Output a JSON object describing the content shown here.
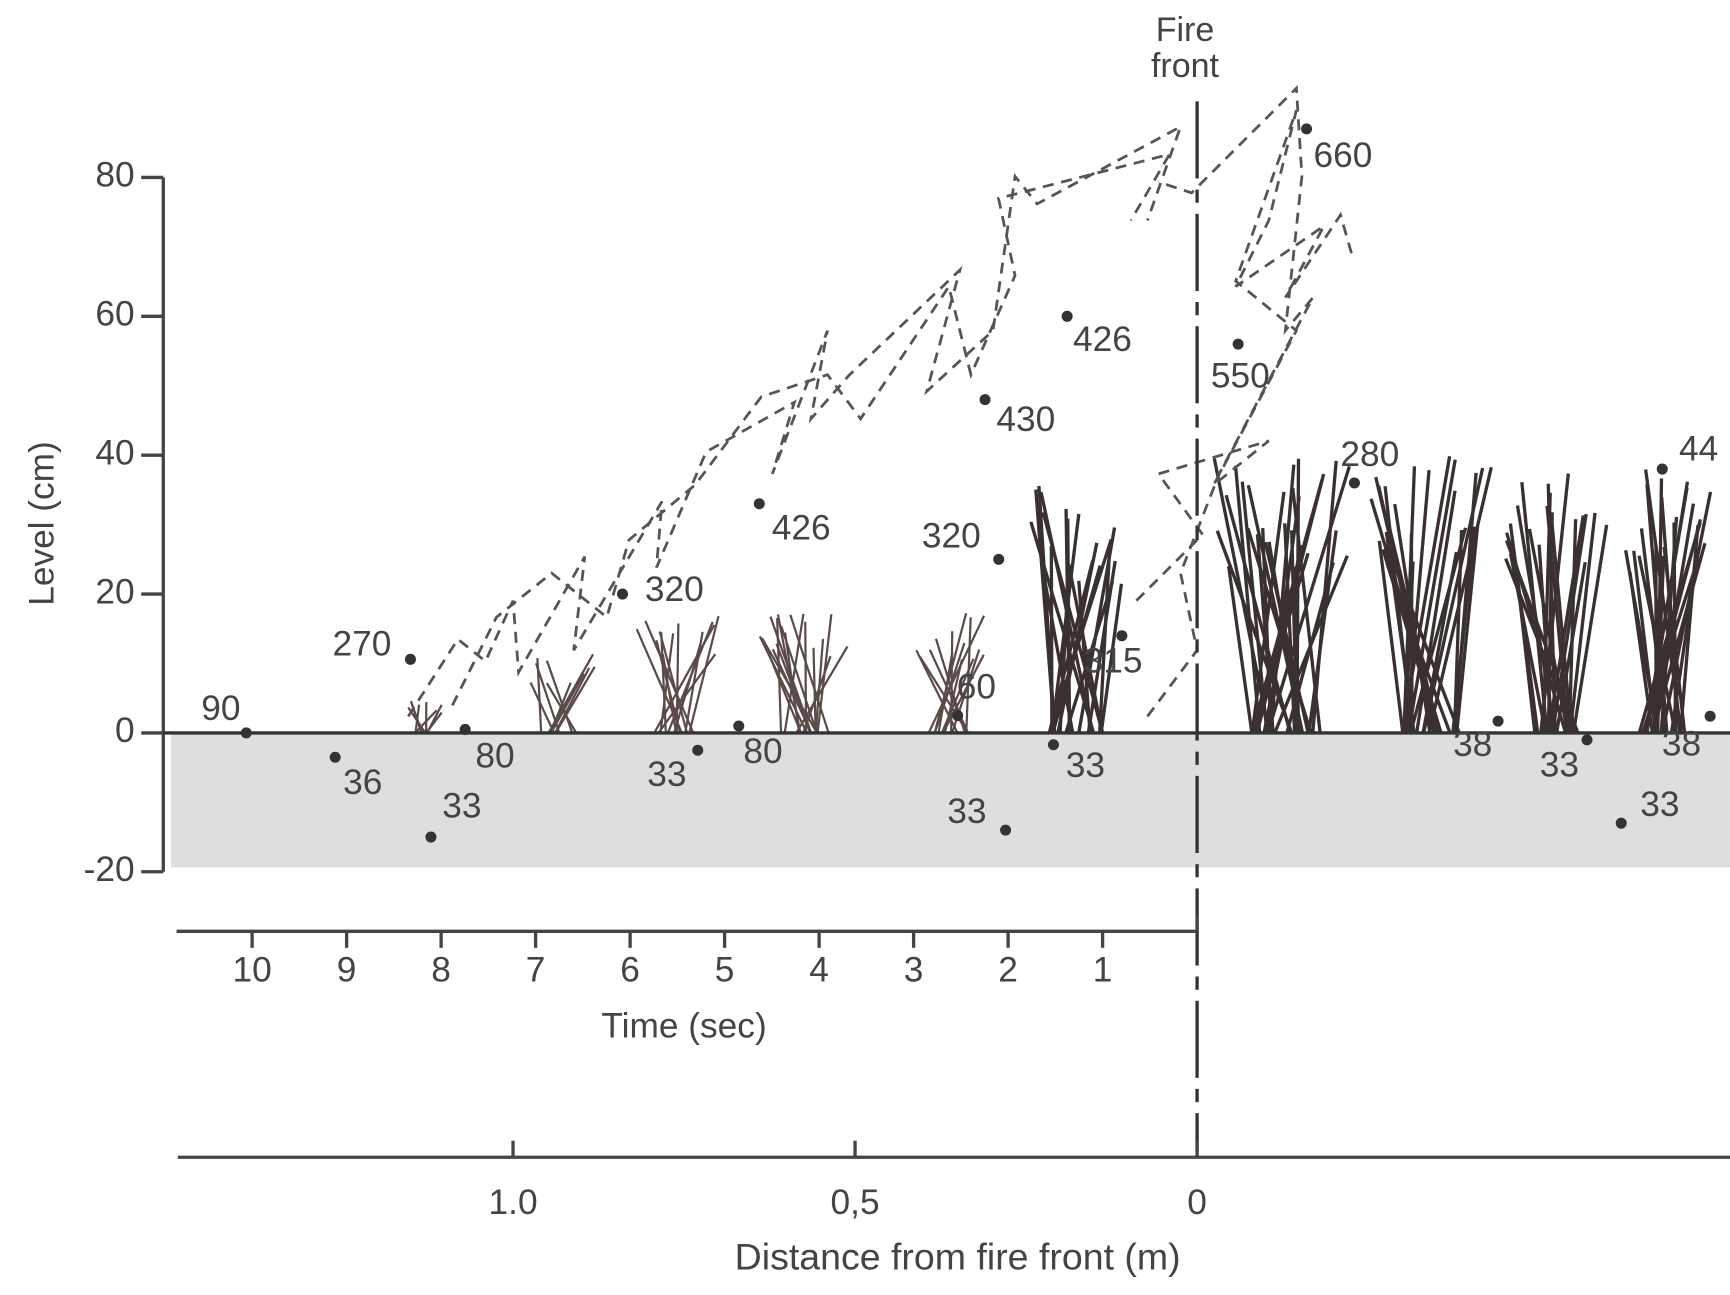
{
  "chart_data": {
    "type": "scatter",
    "annotation": "Fire front",
    "ylabel": "Level (cm)",
    "ylim": [
      -20,
      90
    ],
    "yticks": [
      -20,
      0,
      20,
      40,
      60,
      80
    ],
    "xlabel": "Distance from fire front (m)",
    "xlim": [
      -1.49,
      0.78
    ],
    "xticks": [
      {
        "value": -1,
        "label": "1.0"
      },
      {
        "value": -0.5,
        "label": "0,5"
      },
      0,
      {
        "value": 1,
        "label": "1.0"
      }
    ],
    "time_axis": {
      "label": "Time (sec)",
      "lim": [
        10.8,
        0
      ],
      "ticks": [
        10,
        9,
        8,
        7,
        6,
        5,
        4,
        3,
        2,
        1
      ]
    },
    "color": "#333333",
    "x": [
      -1.39,
      -1.26,
      -1.12,
      -1.15,
      -1.07,
      -0.84,
      -0.73,
      -0.67,
      -0.64,
      -0.29,
      -0.31,
      -0.19,
      -0.35,
      -0.21,
      -0.28,
      -0.11,
      0.06,
      0.16,
      0.23,
      0.44,
      0.57,
      0.75,
      0.62,
      0.68
    ],
    "y": [
      0,
      -3.5,
      -15,
      10.6,
      0.5,
      20,
      -2.5,
      1,
      33,
      25,
      48,
      60,
      2.5,
      -1.7,
      -14,
      14,
      56,
      87,
      36,
      1.7,
      -1,
      2.4,
      -13,
      38
    ],
    "temperatures": [
      90,
      36,
      33,
      270,
      80,
      320,
      33,
      80,
      426,
      320,
      430,
      426,
      60,
      33,
      33,
      315,
      550,
      660,
      280,
      38,
      33,
      38,
      33,
      44
    ]
  }
}
